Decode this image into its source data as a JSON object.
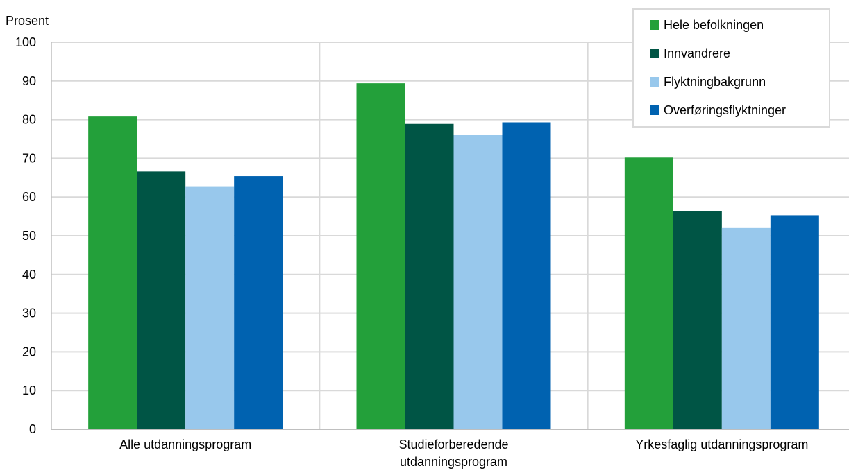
{
  "chart_data": {
    "type": "bar",
    "ylabel": "Prosent",
    "xlabel": "",
    "ylim": [
      0,
      100
    ],
    "yticks": [
      0,
      10,
      20,
      30,
      40,
      50,
      60,
      70,
      80,
      90,
      100
    ],
    "grid": true,
    "legend_position": "top-right",
    "categories": [
      [
        "Alle utdanningsprogram"
      ],
      [
        "Studieforberedende",
        "utdanningsprogram"
      ],
      [
        "Yrkesfaglig utdanningsprogram"
      ]
    ],
    "series": [
      {
        "name": "Hele befolkningen",
        "color": "#23a03a",
        "values": [
          80.8,
          89.4,
          70.2
        ]
      },
      {
        "name": "Innvandrere",
        "color": "#005545",
        "values": [
          66.6,
          78.9,
          56.3
        ]
      },
      {
        "name": "Flyktningbakgrunn",
        "color": "#98c8ec",
        "values": [
          62.8,
          76.1,
          52.0
        ]
      },
      {
        "name": "Overføringsflyktninger",
        "color": "#0062b0",
        "values": [
          65.4,
          79.3,
          55.3
        ]
      }
    ]
  }
}
